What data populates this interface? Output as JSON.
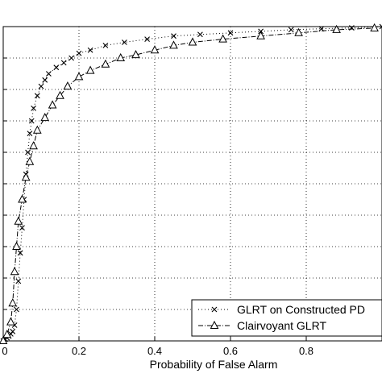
{
  "chart_data": {
    "type": "line",
    "title": "",
    "xlabel": "Probability of False Alarm",
    "ylabel": "",
    "xlim": [
      0,
      1
    ],
    "ylim": [
      0,
      1
    ],
    "grid": true,
    "legend": "bottom-right",
    "xticks": [
      {
        "value": 0,
        "label": "0"
      },
      {
        "value": 0.2,
        "label": "0.2"
      },
      {
        "value": 0.4,
        "label": "0.4"
      },
      {
        "value": 0.6,
        "label": "0.6"
      },
      {
        "value": 0.8,
        "label": "0.8"
      }
    ],
    "ygrid": [
      0.1,
      0.2,
      0.3,
      0.4,
      0.5,
      0.6,
      0.7,
      0.8,
      0.9,
      1.0
    ],
    "series": [
      {
        "name": "GLRT on Constructed PD",
        "marker": "x",
        "line": "dotted",
        "color": "#000000",
        "x": [
          0,
          0.005,
          0.01,
          0.015,
          0.02,
          0.025,
          0.03,
          0.035,
          0.04,
          0.045,
          0.05,
          0.055,
          0.06,
          0.065,
          0.07,
          0.075,
          0.08,
          0.09,
          0.1,
          0.11,
          0.12,
          0.14,
          0.16,
          0.18,
          0.2,
          0.23,
          0.27,
          0.32,
          0.38,
          0.45,
          0.52,
          0.6,
          0.68,
          0.76,
          0.84,
          0.92,
          1.0
        ],
        "y": [
          0,
          0.005,
          0.01,
          0.015,
          0.022,
          0.03,
          0.05,
          0.1,
          0.19,
          0.28,
          0.36,
          0.45,
          0.53,
          0.6,
          0.66,
          0.7,
          0.74,
          0.78,
          0.81,
          0.83,
          0.85,
          0.87,
          0.885,
          0.9,
          0.915,
          0.925,
          0.94,
          0.95,
          0.96,
          0.97,
          0.975,
          0.98,
          0.985,
          0.99,
          0.993,
          0.996,
          1.0
        ]
      },
      {
        "name": "Clairvoyant GLRT",
        "marker": "triangle",
        "line": "dashdot",
        "color": "#000000",
        "x": [
          0,
          0.01,
          0.02,
          0.025,
          0.03,
          0.035,
          0.04,
          0.05,
          0.06,
          0.07,
          0.08,
          0.09,
          0.11,
          0.13,
          0.15,
          0.17,
          0.2,
          0.23,
          0.27,
          0.31,
          0.35,
          0.4,
          0.45,
          0.5,
          0.58,
          0.68,
          0.78,
          0.88,
          0.98
        ],
        "y": [
          0,
          0.02,
          0.06,
          0.12,
          0.22,
          0.3,
          0.38,
          0.45,
          0.52,
          0.57,
          0.62,
          0.67,
          0.71,
          0.75,
          0.78,
          0.81,
          0.84,
          0.86,
          0.88,
          0.9,
          0.91,
          0.925,
          0.94,
          0.95,
          0.96,
          0.97,
          0.98,
          0.99,
          0.995
        ]
      }
    ]
  }
}
